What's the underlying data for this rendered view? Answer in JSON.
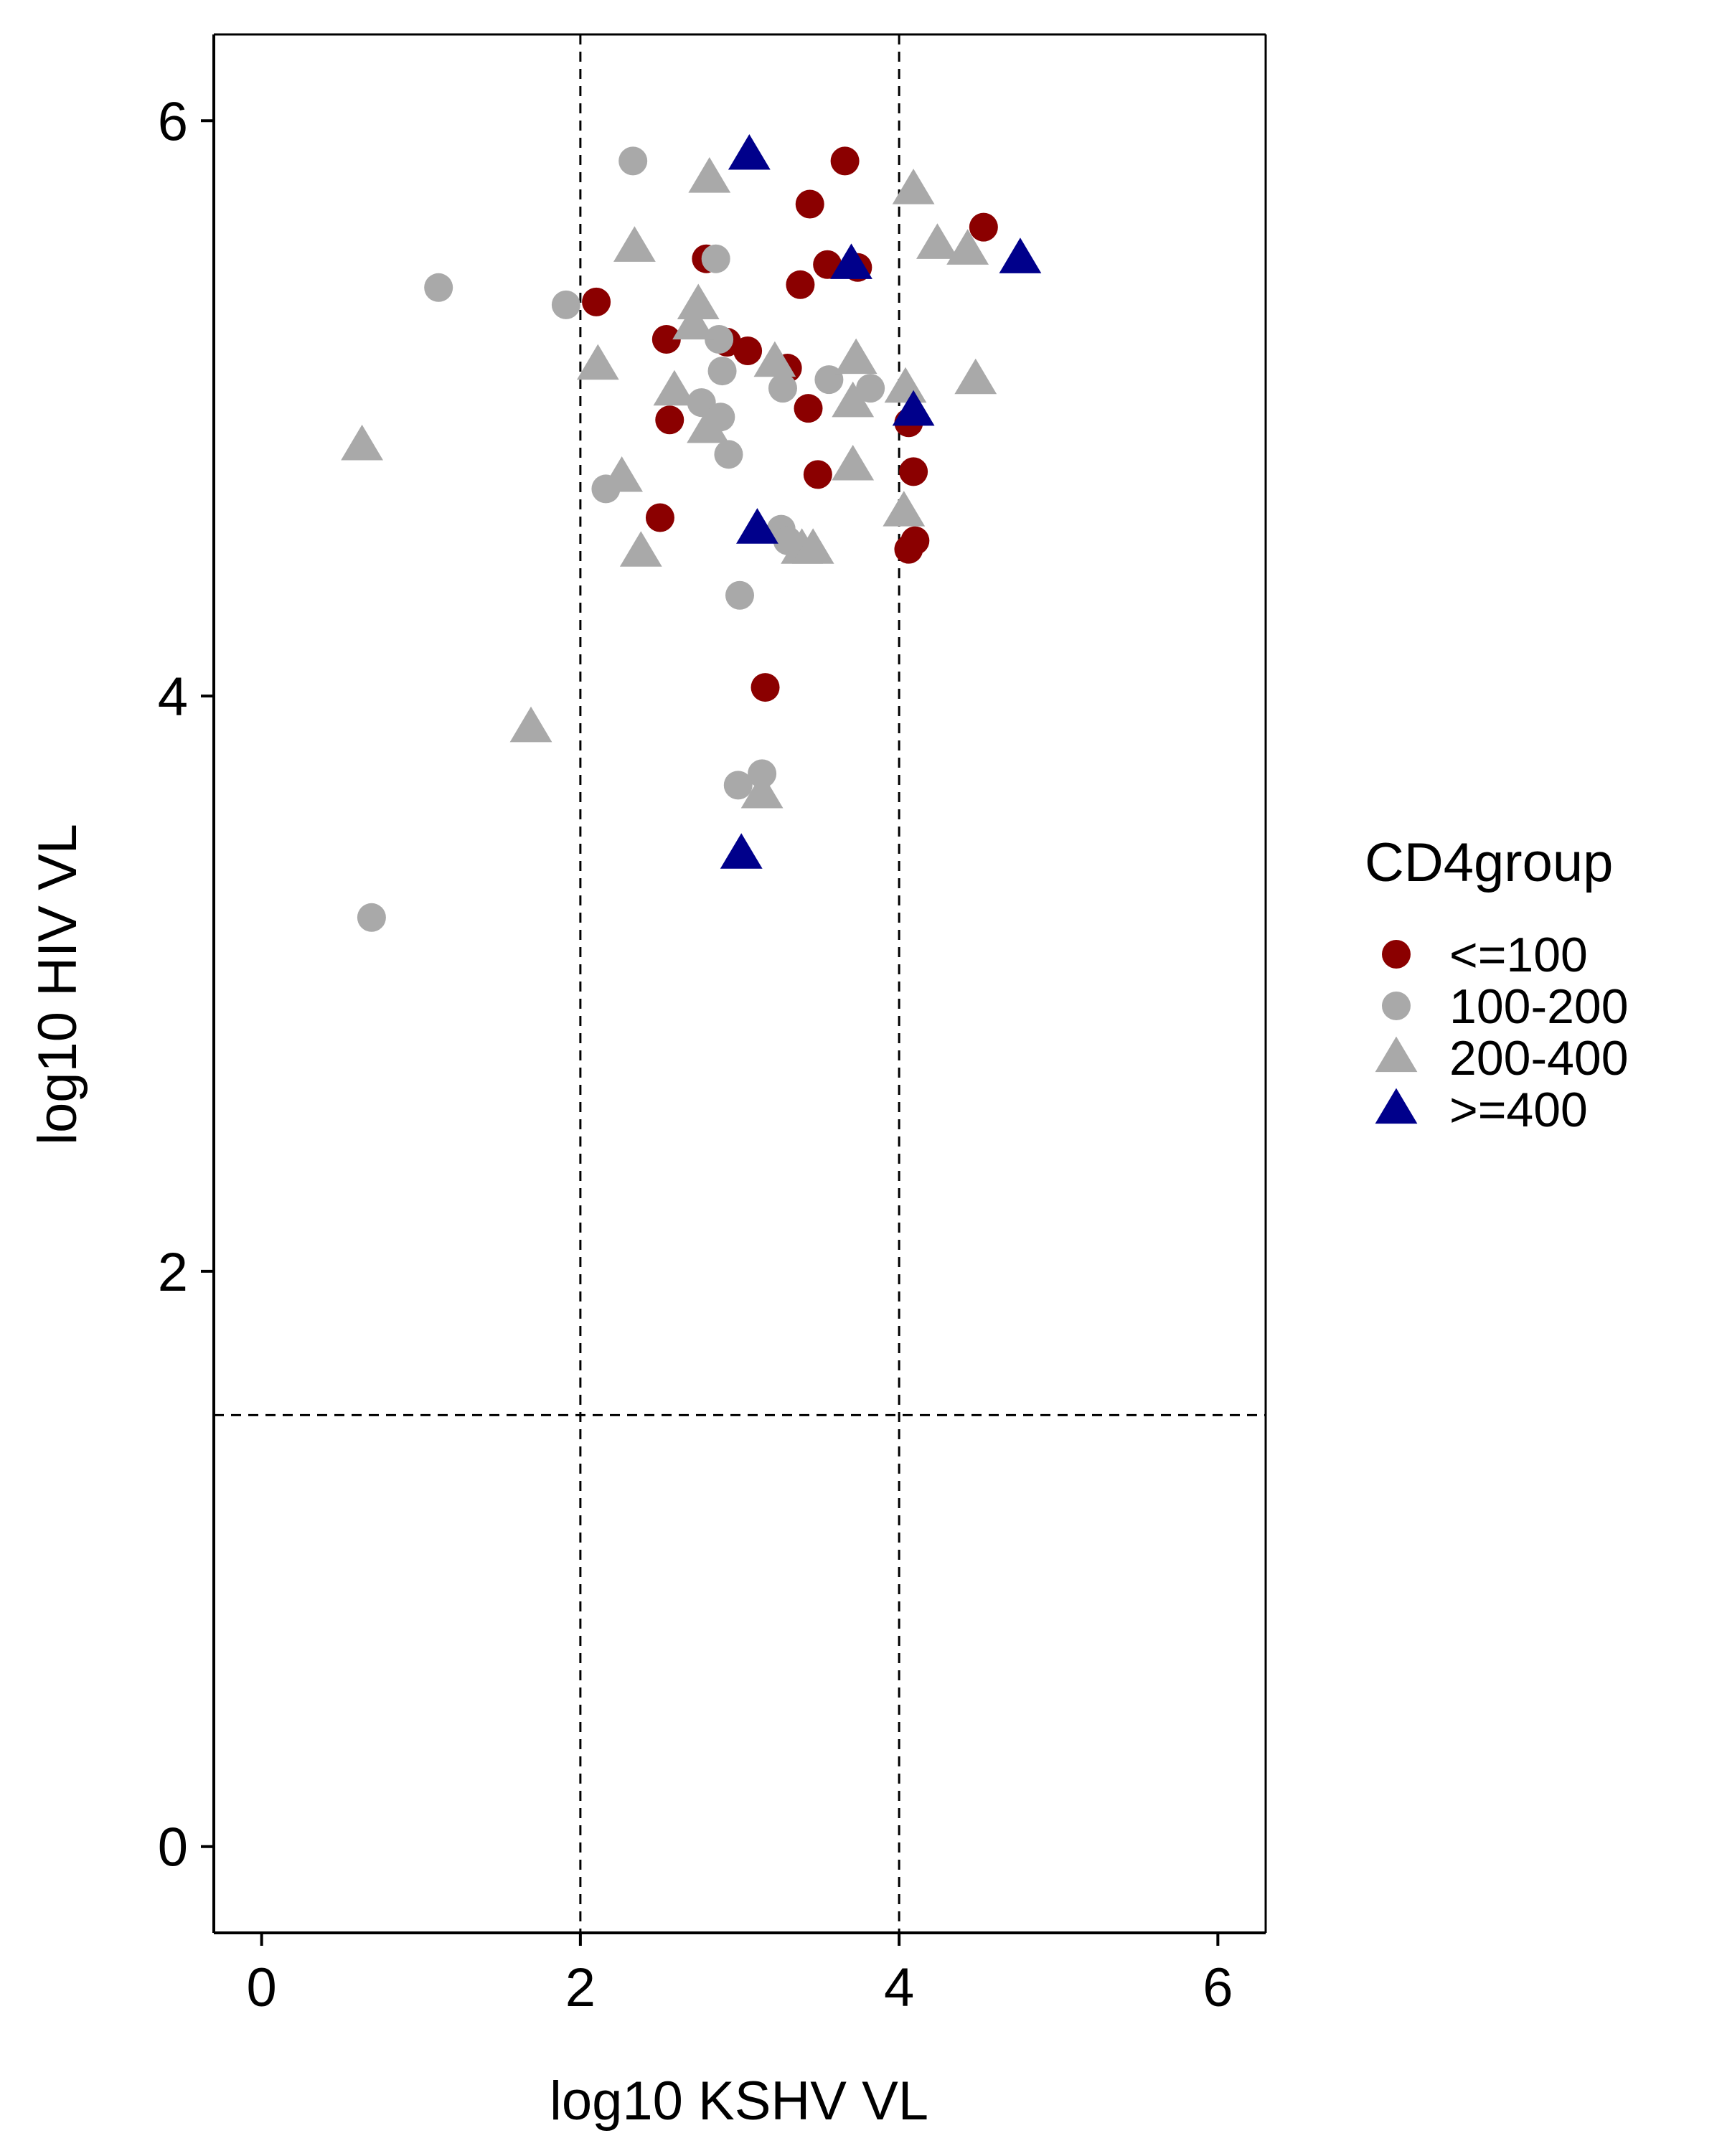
{
  "chart_data": {
    "type": "scatter",
    "title": "",
    "xlabel": "log10 KSHV VL",
    "ylabel": "log10 HIV VL",
    "xlim": [
      -0.3,
      6.3
    ],
    "ylim": [
      -0.3,
      6.3
    ],
    "x_ticks": [
      "0",
      "2",
      "4",
      "6"
    ],
    "y_ticks": [
      "0",
      "2",
      "4",
      "6"
    ],
    "grid": false,
    "reference_lines": {
      "vertical": [
        2,
        4
      ],
      "horizontal": [
        1.5
      ],
      "style": "dashed"
    },
    "legend": {
      "title": "CD4group",
      "position": "right"
    },
    "colors": {
      "<=100": "#8b0000",
      "100-200": "#a9a9a9",
      "200-400": "#a9a9a9",
      ">=400": "#00008b"
    },
    "series": [
      {
        "name": "<=100",
        "shape": "circle",
        "points": [
          [
            3.66,
            5.86
          ],
          [
            3.44,
            5.71
          ],
          [
            4.53,
            5.63
          ],
          [
            2.79,
            5.52
          ],
          [
            3.55,
            5.5
          ],
          [
            3.74,
            5.49
          ],
          [
            3.38,
            5.43
          ],
          [
            2.1,
            5.37
          ],
          [
            2.54,
            5.24
          ],
          [
            2.92,
            5.23
          ],
          [
            3.05,
            5.2
          ],
          [
            3.3,
            5.14
          ],
          [
            3.43,
            5.0
          ],
          [
            2.56,
            4.96
          ],
          [
            4.06,
            4.95
          ],
          [
            3.49,
            4.77
          ],
          [
            4.09,
            4.78
          ],
          [
            2.5,
            4.62
          ],
          [
            4.1,
            4.54
          ],
          [
            4.06,
            4.51
          ],
          [
            3.16,
            4.03
          ]
        ]
      },
      {
        "name": "100-200",
        "shape": "circle",
        "points": [
          [
            2.33,
            5.86
          ],
          [
            1.11,
            5.42
          ],
          [
            1.91,
            5.36
          ],
          [
            2.85,
            5.52
          ],
          [
            2.87,
            5.24
          ],
          [
            2.89,
            5.13
          ],
          [
            2.76,
            5.02
          ],
          [
            2.88,
            4.97
          ],
          [
            3.27,
            5.07
          ],
          [
            3.56,
            5.1
          ],
          [
            3.82,
            5.07
          ],
          [
            2.93,
            4.84
          ],
          [
            2.16,
            4.72
          ],
          [
            3.26,
            4.58
          ],
          [
            3.3,
            4.54
          ],
          [
            3.0,
            4.35
          ],
          [
            3.14,
            3.73
          ],
          [
            2.99,
            3.69
          ],
          [
            0.69,
            3.23
          ]
        ]
      },
      {
        "name": "200-400",
        "shape": "triangle",
        "points": [
          [
            2.81,
            5.8
          ],
          [
            4.09,
            5.76
          ],
          [
            2.34,
            5.56
          ],
          [
            4.24,
            5.57
          ],
          [
            4.43,
            5.55
          ],
          [
            2.74,
            5.36
          ],
          [
            2.71,
            5.29
          ],
          [
            2.11,
            5.15
          ],
          [
            3.22,
            5.16
          ],
          [
            3.73,
            5.17
          ],
          [
            2.59,
            5.06
          ],
          [
            4.04,
            5.07
          ],
          [
            4.48,
            5.1
          ],
          [
            3.71,
            5.02
          ],
          [
            2.8,
            4.93
          ],
          [
            2.26,
            4.76
          ],
          [
            3.71,
            4.8
          ],
          [
            4.03,
            4.64
          ],
          [
            2.38,
            4.5
          ],
          [
            3.39,
            4.51
          ],
          [
            3.46,
            4.51
          ],
          [
            3.14,
            3.66
          ],
          [
            1.69,
            3.89
          ],
          [
            0.63,
            4.87
          ]
        ]
      },
      {
        "name": ">=400",
        "shape": "triangle",
        "points": [
          [
            3.06,
            5.88
          ],
          [
            4.76,
            5.52
          ],
          [
            3.7,
            5.5
          ],
          [
            4.09,
            4.99
          ],
          [
            3.11,
            4.58
          ],
          [
            3.01,
            3.45
          ]
        ]
      }
    ]
  }
}
